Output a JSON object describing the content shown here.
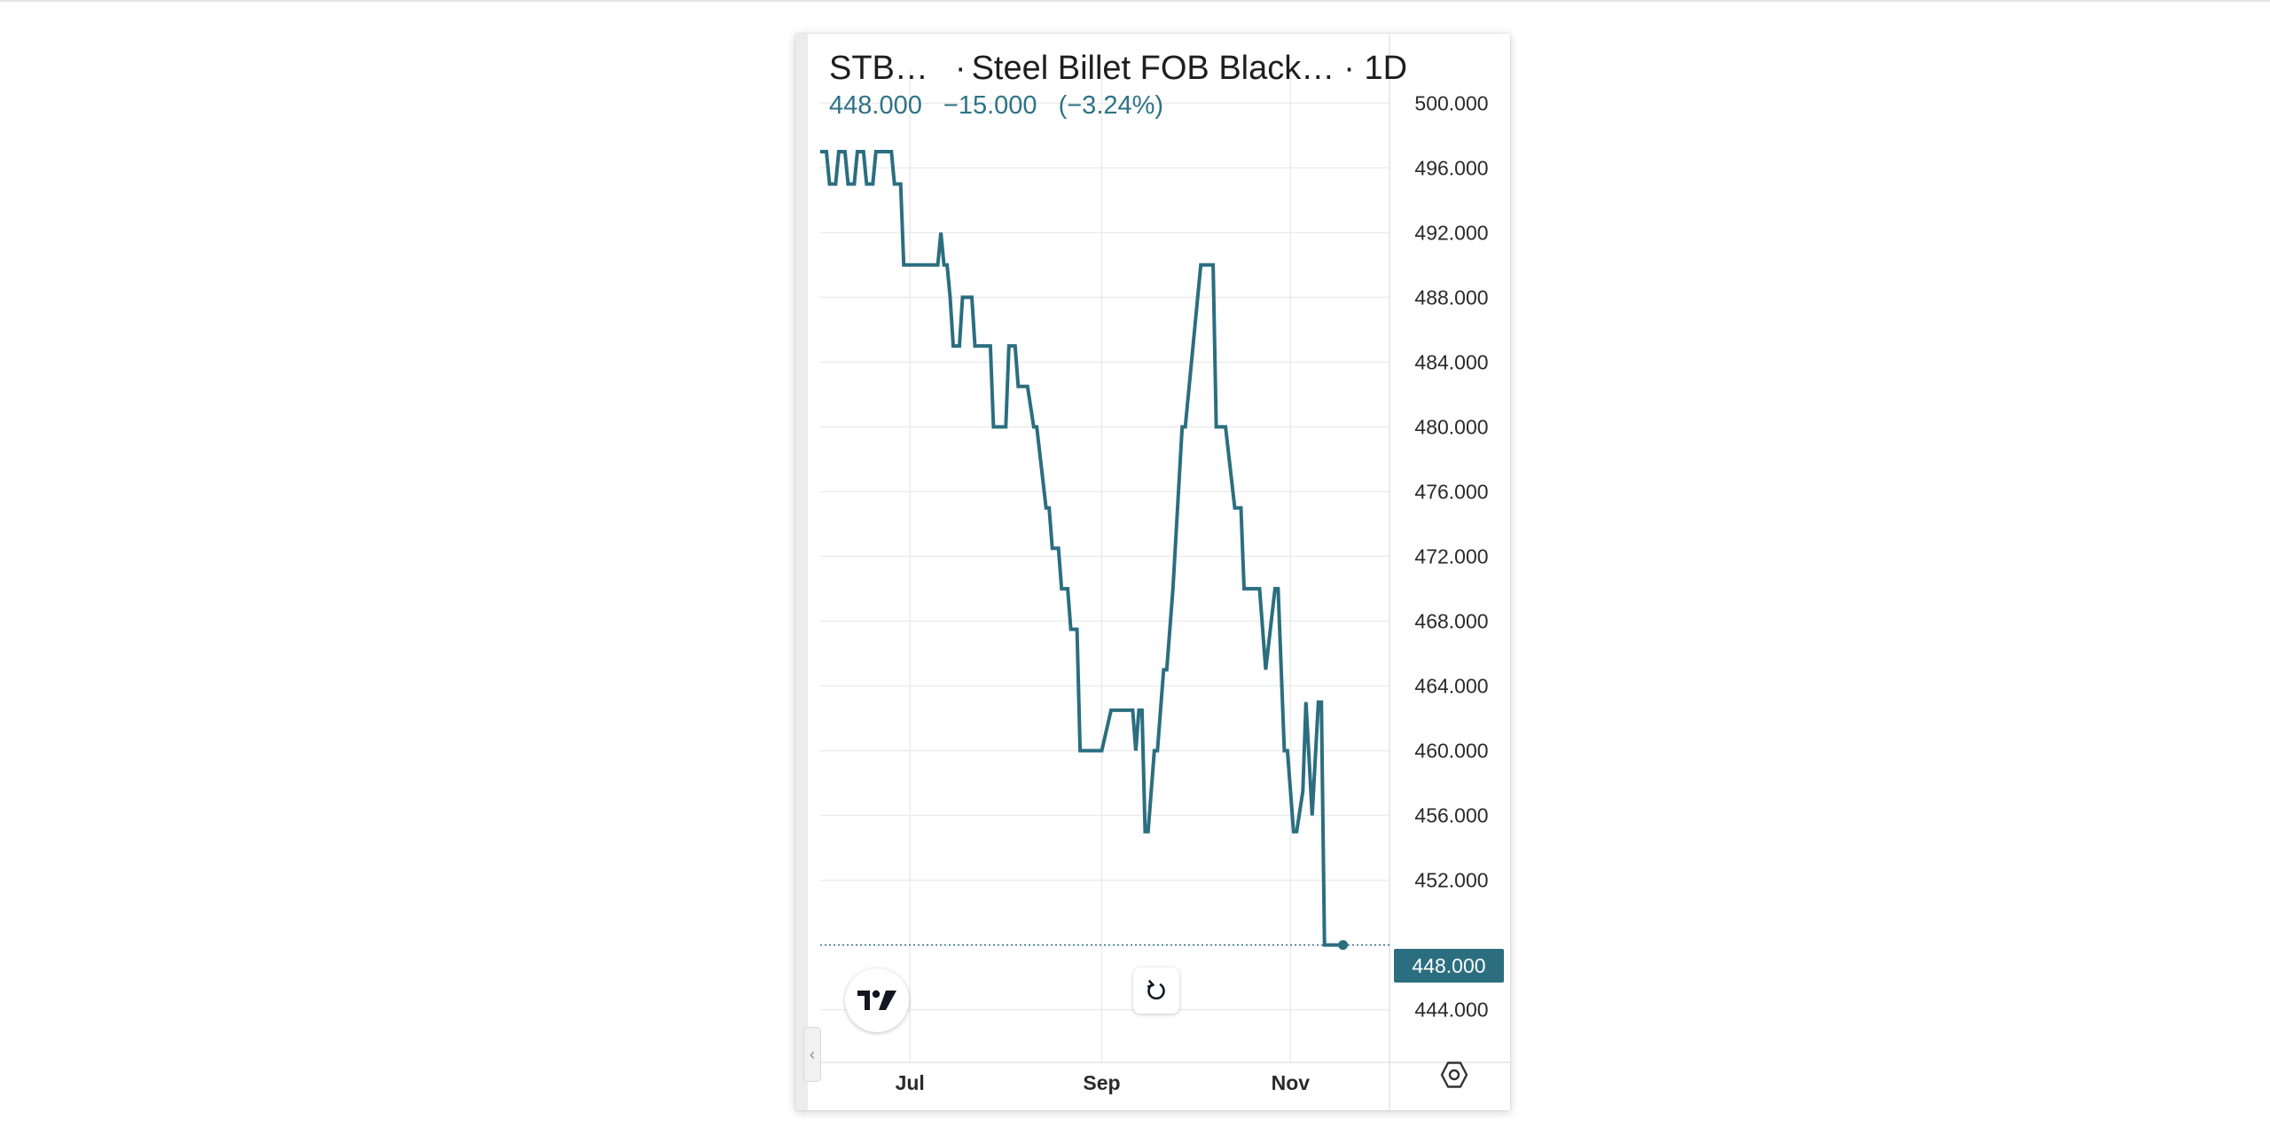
{
  "legend": {
    "symbol": "STB…",
    "separator": "·",
    "description": "Steel Billet FOB Black…",
    "interval": "· 1D",
    "last_price": "448.000",
    "change": "−15.000",
    "change_percent": "(−3.24%)"
  },
  "price_badge": "448.000",
  "icons": {
    "logo": "tradingview-logo-icon",
    "reset": "reset-chart-icon",
    "settings": "settings-icon",
    "collapse": "chevron-left-icon"
  },
  "colors": {
    "line": "#2b6e80",
    "badge": "#2b6e80",
    "legend_change": "#2e7387",
    "grid": "#ececec"
  },
  "chart_data": {
    "type": "line",
    "y_tick_labels": [
      "500.000",
      "496.000",
      "492.000",
      "488.000",
      "484.000",
      "480.000",
      "476.000",
      "472.000",
      "468.000",
      "464.000",
      "460.000",
      "456.000",
      "452.000",
      "448.000",
      "444.000"
    ],
    "y_ticks": [
      500,
      496,
      492,
      488,
      484,
      480,
      476,
      472,
      468,
      464,
      460,
      456,
      452,
      448,
      444
    ],
    "x_tick_labels": [
      "Jul",
      "Sep",
      "Nov"
    ],
    "x_tick_dates": [
      "2024-07-01",
      "2024-09-01",
      "2024-11-01"
    ],
    "ylim": [
      442.5,
      501
    ],
    "xlim": [
      "2024-06-02",
      "2024-12-03"
    ],
    "last_value": 448,
    "grid": true,
    "series": [
      {
        "x": [
          "2024-06-02",
          "2024-06-04",
          "2024-06-05",
          "2024-06-07",
          "2024-06-08",
          "2024-06-10",
          "2024-06-11",
          "2024-06-13",
          "2024-06-14",
          "2024-06-16",
          "2024-06-17",
          "2024-06-19",
          "2024-06-20",
          "2024-06-25",
          "2024-06-26",
          "2024-06-28",
          "2024-06-29",
          "2024-07-04",
          "2024-07-10",
          "2024-07-11",
          "2024-07-12",
          "2024-07-13",
          "2024-07-14",
          "2024-07-15",
          "2024-07-17",
          "2024-07-18",
          "2024-07-21",
          "2024-07-22",
          "2024-07-23",
          "2024-07-25",
          "2024-07-27",
          "2024-07-28",
          "2024-08-01",
          "2024-08-02",
          "2024-08-04",
          "2024-08-05",
          "2024-08-07",
          "2024-08-08",
          "2024-08-10",
          "2024-08-11",
          "2024-08-14",
          "2024-08-15",
          "2024-08-16",
          "2024-08-18",
          "2024-08-19",
          "2024-08-21",
          "2024-08-22",
          "2024-08-24",
          "2024-08-25",
          "2024-08-27",
          "2024-08-28",
          "2024-08-31",
          "2024-09-01",
          "2024-09-04",
          "2024-09-11",
          "2024-09-12",
          "2024-09-13",
          "2024-09-14",
          "2024-09-15",
          "2024-09-16",
          "2024-09-18",
          "2024-09-19",
          "2024-09-21",
          "2024-09-22",
          "2024-09-24",
          "2024-09-27",
          "2024-09-28",
          "2024-10-03",
          "2024-10-07",
          "2024-10-08",
          "2024-10-10",
          "2024-10-11",
          "2024-10-14",
          "2024-10-16",
          "2024-10-17",
          "2024-10-19",
          "2024-10-20",
          "2024-10-22",
          "2024-10-24",
          "2024-10-27",
          "2024-10-28",
          "2024-10-30",
          "2024-10-31",
          "2024-11-02",
          "2024-11-03",
          "2024-11-05",
          "2024-11-06",
          "2024-11-08",
          "2024-11-10",
          "2024-11-11",
          "2024-11-12",
          "2024-11-13",
          "2024-11-14",
          "2024-11-15",
          "2024-11-16",
          "2024-11-18"
        ],
        "values": [
          497,
          497,
          495,
          495,
          497,
          497,
          495,
          495,
          497,
          497,
          495,
          495,
          497,
          497,
          495,
          495,
          490,
          490,
          490,
          492,
          490,
          490,
          488,
          485,
          485,
          488,
          488,
          485,
          485,
          485,
          485,
          480,
          480,
          485,
          485,
          482.5,
          482.5,
          482.5,
          480,
          480,
          475,
          475,
          472.5,
          472.5,
          470,
          470,
          467.5,
          467.5,
          460,
          460,
          460,
          460,
          460,
          462.5,
          462.5,
          460,
          462.5,
          462.5,
          455,
          455,
          460,
          460,
          465,
          465,
          470,
          480,
          480,
          490,
          490,
          480,
          480,
          480,
          475,
          475,
          470,
          470,
          470,
          470,
          465,
          470,
          470,
          460,
          460,
          455,
          455,
          457.5,
          463,
          456,
          463,
          463,
          448,
          448,
          448,
          448,
          448,
          448
        ]
      }
    ]
  }
}
